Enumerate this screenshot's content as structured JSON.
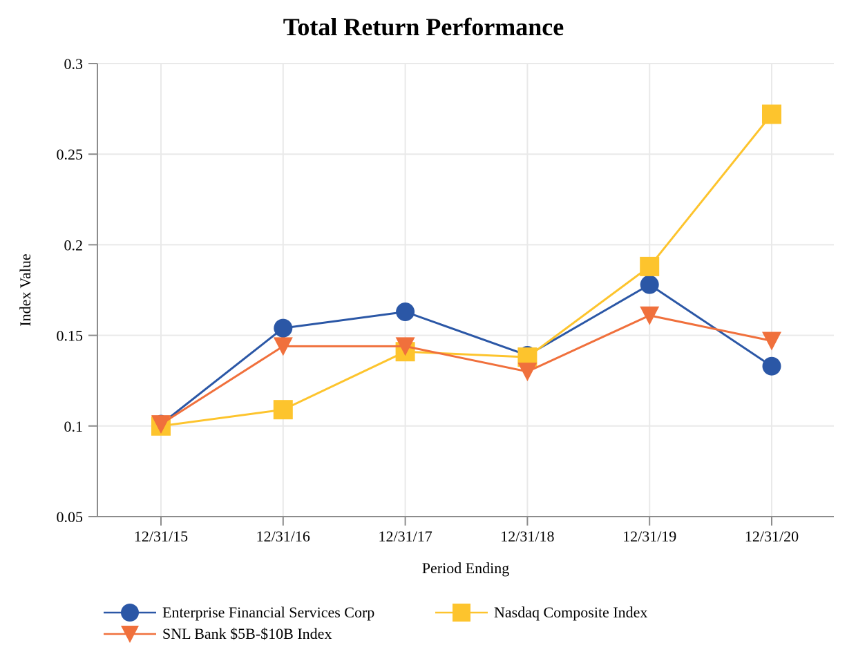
{
  "page": {
    "background": "#ffffff"
  },
  "chart_data": {
    "type": "line",
    "title": "Total Return Performance",
    "xlabel": "Period Ending",
    "ylabel": "Index Value",
    "categories": [
      "12/31/15",
      "12/31/16",
      "12/31/17",
      "12/31/18",
      "12/31/19",
      "12/31/20"
    ],
    "series": [
      {
        "name": "Enterprise Financial Services Corp",
        "marker": "circle",
        "color": "#2b57a6",
        "values": [
          0.101,
          0.154,
          0.163,
          0.139,
          0.178,
          0.133
        ]
      },
      {
        "name": "SNL Bank $5B-$10B Index",
        "marker": "triangle-down",
        "color": "#f0703c",
        "values": [
          0.101,
          0.144,
          0.144,
          0.13,
          0.161,
          0.147
        ]
      },
      {
        "name": "Nasdaq Composite Index",
        "marker": "square",
        "color": "#fdc42d",
        "values": [
          0.1,
          0.109,
          0.141,
          0.138,
          0.188,
          0.272
        ]
      }
    ],
    "draw_order": [
      0,
      2,
      1
    ],
    "ylim": [
      0.05,
      0.3
    ],
    "yticks": [
      0.05,
      0.1,
      0.15,
      0.2,
      0.25,
      0.3
    ],
    "ytick_labels": [
      "0.05",
      "0.1",
      "0.15",
      "0.2",
      "0.25",
      "0.3"
    ],
    "grid": true,
    "legend_position": "bottom-left",
    "axis_color": "#8c8c8c",
    "grid_color": "#e9e9e9",
    "text_color": "#000000"
  }
}
